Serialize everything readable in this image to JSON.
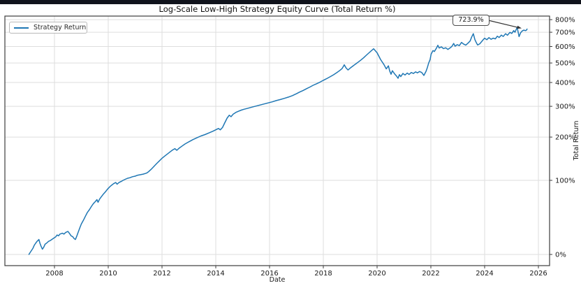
{
  "window": {
    "top_bar_color": "#10131c",
    "background_color": "#ffffff"
  },
  "chart_data": {
    "type": "line",
    "title": "Log-Scale Low-High Strategy Equity Curve (Total Return %)",
    "xlabel": "Date",
    "ylabel": "Total Return",
    "yscale": "log",
    "y_axis_side": "right",
    "grid": true,
    "legend_position": "upper left",
    "x_ticks": [
      2008,
      2010,
      2012,
      2014,
      2016,
      2018,
      2020,
      2022,
      2024,
      2026
    ],
    "y_tick_labels": [
      "0%",
      "100%",
      "200%",
      "300%",
      "400%",
      "500%",
      "600%",
      "700%",
      "800%"
    ],
    "x_range": [
      2006.2,
      2026.4
    ],
    "annotation": {
      "text": "723.9%",
      "x": 2025.58,
      "y": 723.9
    },
    "colors": {
      "line": "#1f77b4",
      "grid": "#dedede",
      "spine": "#3c3c3c",
      "tick_label": "#1a1a1a",
      "arrow": "#333333"
    },
    "series": [
      {
        "name": "Strategy Return",
        "color": "#1f77b4",
        "x": [
          2007.05,
          2007.1,
          2007.15,
          2007.2,
          2007.25,
          2007.3,
          2007.35,
          2007.42,
          2007.46,
          2007.5,
          2007.55,
          2007.6,
          2007.65,
          2007.7,
          2007.78,
          2007.85,
          2007.95,
          2008,
          2008.05,
          2008.1,
          2008.15,
          2008.2,
          2008.3,
          2008.35,
          2008.42,
          2008.5,
          2008.55,
          2008.62,
          2008.68,
          2008.73,
          2008.78,
          2008.82,
          2008.88,
          2008.95,
          2009,
          2009.08,
          2009.15,
          2009.22,
          2009.3,
          2009.38,
          2009.45,
          2009.52,
          2009.58,
          2009.62,
          2009.68,
          2009.75,
          2009.82,
          2009.9,
          2009.97,
          2010.05,
          2010.12,
          2010.2,
          2010.28,
          2010.33,
          2010.4,
          2010.48,
          2010.55,
          2010.63,
          2010.72,
          2010.8,
          2010.9,
          2011,
          2011.1,
          2011.2,
          2011.3,
          2011.42,
          2011.5,
          2011.6,
          2011.7,
          2011.8,
          2011.9,
          2012,
          2012.1,
          2012.2,
          2012.3,
          2012.4,
          2012.48,
          2012.55,
          2012.65,
          2012.75,
          2012.85,
          2012.95,
          2013.05,
          2013.15,
          2013.3,
          2013.45,
          2013.6,
          2013.75,
          2013.9,
          2014,
          2014.1,
          2014.17,
          2014.25,
          2014.33,
          2014.42,
          2014.5,
          2014.57,
          2014.65,
          2014.75,
          2014.85,
          2014.95,
          2015.05,
          2015.2,
          2015.35,
          2015.5,
          2015.65,
          2015.8,
          2015.95,
          2016.1,
          2016.25,
          2016.4,
          2016.55,
          2016.7,
          2016.85,
          2017,
          2017.12,
          2017.25,
          2017.38,
          2017.5,
          2017.62,
          2017.75,
          2017.88,
          2018,
          2018.12,
          2018.25,
          2018.38,
          2018.5,
          2018.6,
          2018.7,
          2018.78,
          2018.85,
          2018.92,
          2019,
          2019.1,
          2019.2,
          2019.3,
          2019.4,
          2019.5,
          2019.6,
          2019.7,
          2019.78,
          2019.87,
          2020,
          2020.13,
          2020.26,
          2020.34,
          2020.42,
          2020.47,
          2020.52,
          2020.57,
          2020.65,
          2020.73,
          2020.78,
          2020.83,
          2020.88,
          2020.96,
          2021.04,
          2021.12,
          2021.19,
          2021.27,
          2021.35,
          2021.43,
          2021.5,
          2021.58,
          2021.66,
          2021.74,
          2021.82,
          2021.87,
          2021.92,
          2021.97,
          2022.01,
          2022.08,
          2022.13,
          2022.21,
          2022.26,
          2022.31,
          2022.39,
          2022.47,
          2022.55,
          2022.63,
          2022.7,
          2022.78,
          2022.85,
          2022.9,
          2022.98,
          2023.06,
          2023.14,
          2023.22,
          2023.3,
          2023.38,
          2023.46,
          2023.52,
          2023.58,
          2023.64,
          2023.7,
          2023.74,
          2023.82,
          2023.88,
          2023.95,
          2024,
          2024.08,
          2024.16,
          2024.24,
          2024.32,
          2024.4,
          2024.47,
          2024.54,
          2024.62,
          2024.69,
          2024.78,
          2024.85,
          2024.94,
          2025.01,
          2025.08,
          2025.13,
          2025.21,
          2025.28,
          2025.34,
          2025.4,
          2025.46,
          2025.52,
          2025.55,
          2025.58
        ],
        "y": [
          0,
          2,
          4,
          6,
          9,
          11,
          13,
          15,
          11,
          8,
          5,
          7,
          10,
          11,
          13,
          14,
          16,
          17,
          18,
          20,
          19,
          21,
          22,
          21,
          23,
          24,
          22,
          19,
          18,
          16,
          15,
          18,
          23,
          29,
          33,
          38,
          43,
          48,
          52,
          57,
          61,
          64,
          67,
          63,
          68,
          72,
          76,
          80,
          84,
          88,
          91,
          94,
          96,
          93,
          96,
          98,
          100,
          102,
          104,
          105,
          107,
          108,
          110,
          111,
          112,
          114,
          117,
          122,
          128,
          134,
          140,
          146,
          151,
          156,
          161,
          166,
          169,
          165,
          171,
          176,
          181,
          185,
          189,
          193,
          198,
          203,
          207,
          212,
          217,
          221,
          225,
          221,
          228,
          242,
          258,
          268,
          263,
          272,
          278,
          282,
          286,
          289,
          293,
          297,
          301,
          305,
          309,
          313,
          317,
          322,
          326,
          331,
          336,
          342,
          350,
          357,
          364,
          372,
          379,
          387,
          394,
          402,
          410,
          418,
          427,
          437,
          448,
          458,
          470,
          490,
          472,
          462,
          472,
          483,
          494,
          505,
          517,
          530,
          545,
          560,
          572,
          585,
          560,
          520,
          490,
          468,
          484,
          456,
          440,
          458,
          442,
          430,
          420,
          438,
          428,
          444,
          436,
          446,
          439,
          449,
          444,
          452,
          447,
          454,
          449,
          434,
          455,
          475,
          500,
          518,
          552,
          574,
          568,
          590,
          608,
          590,
          598,
          586,
          592,
          581,
          589,
          600,
          620,
          602,
          612,
          606,
          627,
          616,
          609,
          622,
          637,
          666,
          689,
          646,
          622,
          610,
          618,
          631,
          647,
          657,
          646,
          661,
          649,
          657,
          652,
          671,
          662,
          679,
          669,
          689,
          678,
          699,
          691,
          712,
          700,
          738,
          668,
          697,
          710,
          716,
          712,
          715,
          723.9
        ]
      }
    ]
  }
}
